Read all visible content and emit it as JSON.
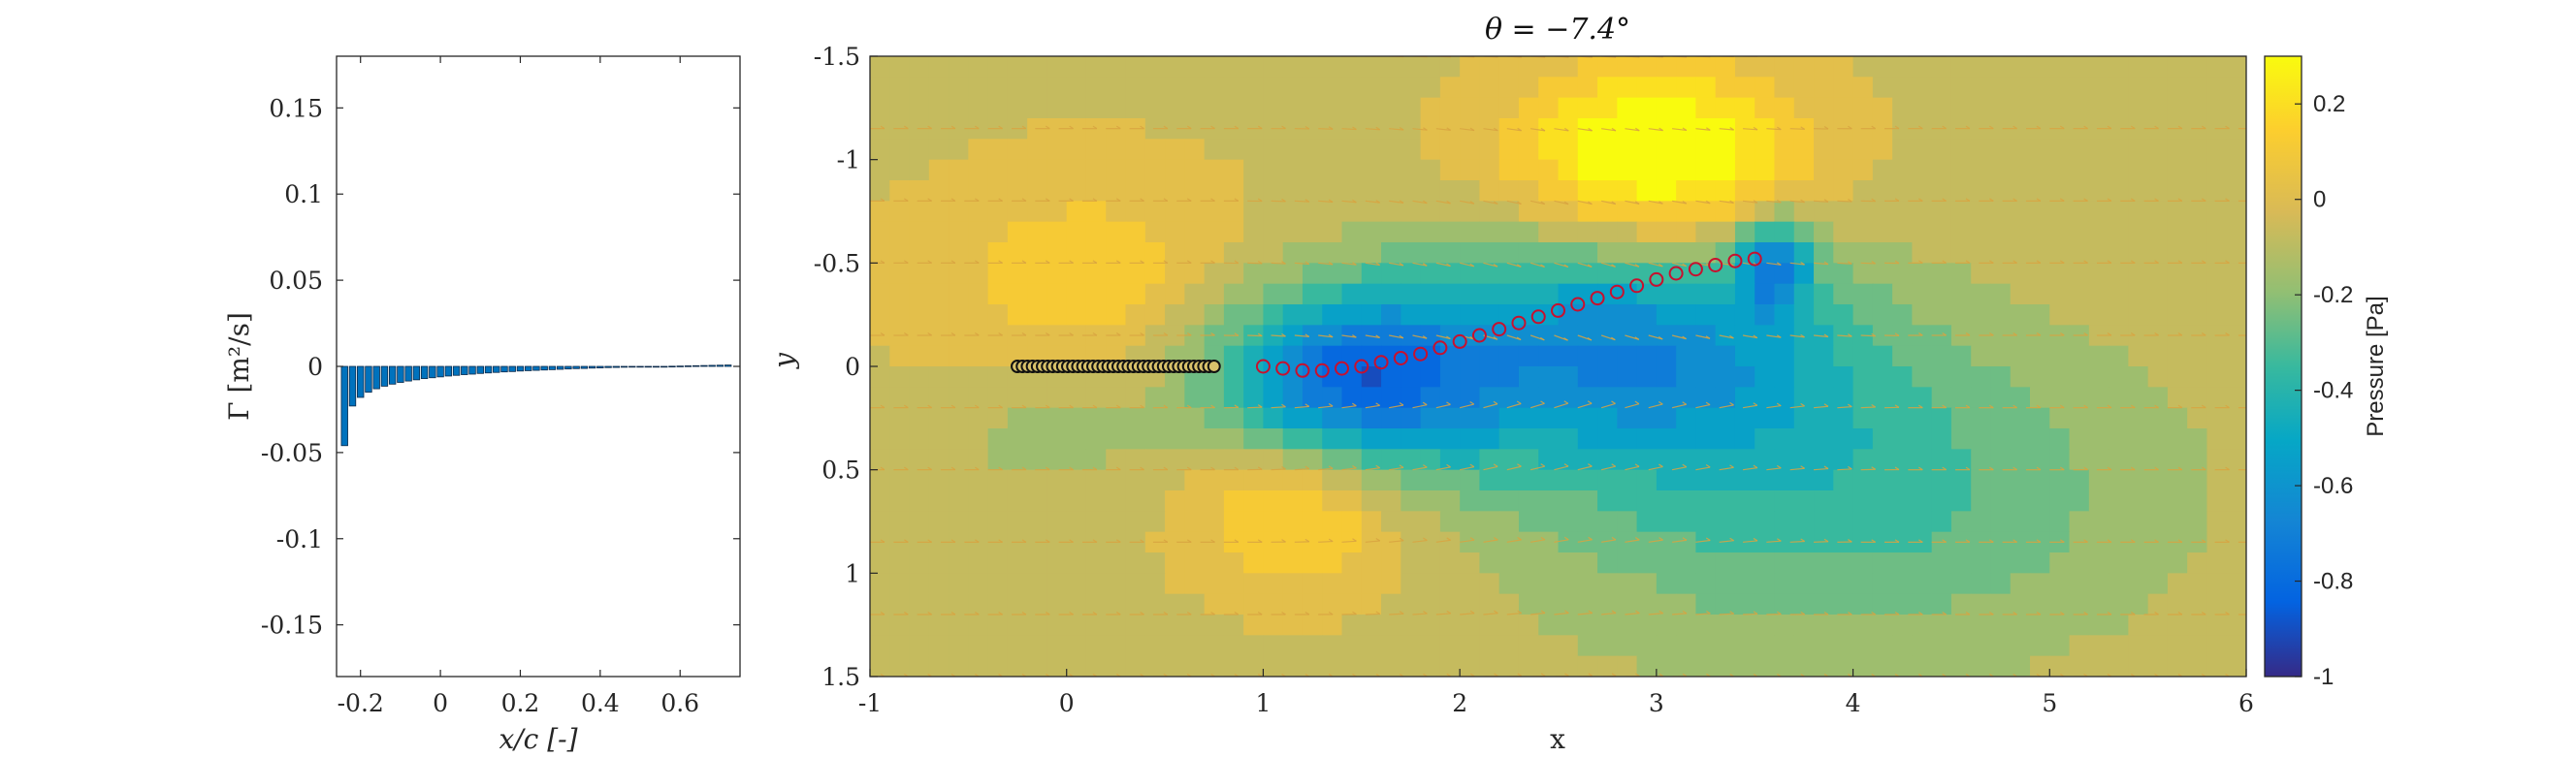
{
  "chart_data": [
    {
      "type": "bar",
      "title": "",
      "xlabel": "x/c [-]",
      "ylabel": "Γ [m²/s]",
      "xlim": [
        -0.26,
        0.75
      ],
      "ylim": [
        -0.18,
        0.18
      ],
      "xticks": [
        "-0.2",
        "0",
        "0.2",
        "0.4",
        "0.6"
      ],
      "xtick_values": [
        -0.2,
        0,
        0.2,
        0.4,
        0.6
      ],
      "yticks": [
        "0.15",
        "0.1",
        "0.05",
        "0",
        "-0.05",
        "-0.1",
        "-0.15"
      ],
      "ytick_values": [
        0.15,
        0.1,
        0.05,
        0,
        -0.05,
        -0.1,
        -0.15
      ],
      "x": [
        -0.24,
        -0.22,
        -0.2,
        -0.18,
        -0.16,
        -0.14,
        -0.12,
        -0.1,
        -0.08,
        -0.06,
        -0.04,
        -0.02,
        0,
        0.02,
        0.04,
        0.06,
        0.08,
        0.1,
        0.12,
        0.14,
        0.16,
        0.18,
        0.2,
        0.22,
        0.24,
        0.26,
        0.28,
        0.3,
        0.32,
        0.34,
        0.36,
        0.38,
        0.4,
        0.42,
        0.44,
        0.46,
        0.48,
        0.5,
        0.52,
        0.54,
        0.56,
        0.58,
        0.6,
        0.62,
        0.64,
        0.66,
        0.68,
        0.7,
        0.72
      ],
      "values": [
        -0.046,
        -0.023,
        -0.018,
        -0.015,
        -0.013,
        -0.0115,
        -0.0103,
        -0.0093,
        -0.0085,
        -0.0078,
        -0.0071,
        -0.0066,
        -0.0061,
        -0.0056,
        -0.0052,
        -0.0048,
        -0.0045,
        -0.0041,
        -0.0038,
        -0.0035,
        -0.0032,
        -0.003,
        -0.0027,
        -0.0025,
        -0.0023,
        -0.0021,
        -0.0019,
        -0.0017,
        -0.0015,
        -0.0013,
        -0.0012,
        -0.001,
        -0.0009,
        -0.0007,
        -0.0006,
        -0.0005,
        -0.0004,
        -0.0003,
        -0.0002,
        -0.0001,
        0,
        0.0001,
        0.0002,
        0.0003,
        0.0004,
        0.0005,
        0.0006,
        0.0007,
        0.0008
      ],
      "bar_color": "#0072BD",
      "grid": false
    },
    {
      "type": "heatmap",
      "title": "θ = −7.4°",
      "xlabel": "x",
      "ylabel": "y",
      "xlim": [
        -1,
        6
      ],
      "ylim": [
        -1.5,
        1.5
      ],
      "y_reversed": true,
      "xticks": [
        "-1",
        "0",
        "1",
        "2",
        "3",
        "4",
        "5",
        "6"
      ],
      "xtick_values": [
        -1,
        0,
        1,
        2,
        3,
        4,
        5,
        6
      ],
      "yticks": [
        "-1.5",
        "-1",
        "-0.5",
        "0",
        "0.5",
        "1",
        "1.5"
      ],
      "ytick_values": [
        -1.5,
        -1,
        -0.5,
        0,
        0.5,
        1,
        1.5
      ],
      "colorbar": {
        "label": "Pressure [Pa]",
        "range": [
          -1,
          0.3
        ],
        "ticks": [
          "0.2",
          "0",
          "-0.2",
          "-0.4",
          "-0.6",
          "-0.8",
          "-1"
        ],
        "tick_values": [
          0.2,
          0,
          -0.2,
          -0.4,
          -0.6,
          -0.8,
          -1
        ],
        "colormap": "parula"
      },
      "pressure_sources": [
        {
          "x": 0.1,
          "y": -0.4,
          "strength": 0.18,
          "sx": 0.85,
          "sy": 0.55
        },
        {
          "x": -0.1,
          "y": 0.3,
          "strength": -0.12,
          "sx": 0.55,
          "sy": 0.35
        },
        {
          "x": 1.4,
          "y": 0.1,
          "strength": -0.75,
          "sx": 0.7,
          "sy": 0.45
        },
        {
          "x": 2.8,
          "y": -0.1,
          "strength": -0.55,
          "sx": 1.1,
          "sy": 0.55
        },
        {
          "x": 3.6,
          "y": -0.5,
          "strength": -0.55,
          "sx": 0.18,
          "sy": 0.22
        },
        {
          "x": 3.0,
          "y": -1.0,
          "strength": 0.45,
          "sx": 0.75,
          "sy": 0.45
        },
        {
          "x": 1.2,
          "y": 0.6,
          "strength": 0.35,
          "sx": 0.55,
          "sy": 0.45
        },
        {
          "x": 3.9,
          "y": 0.6,
          "strength": -0.3,
          "sx": 1.6,
          "sy": 0.8
        }
      ],
      "background_pressure": -0.05,
      "plate": {
        "x_start": -0.25,
        "x_end": 0.75,
        "y": 0,
        "marker_color": "#111111",
        "n_markers": 40
      },
      "wake": {
        "marker_color": "#c8102e",
        "x": [
          1.0,
          1.1,
          1.2,
          1.3,
          1.4,
          1.5,
          1.6,
          1.7,
          1.8,
          1.9,
          2.0,
          2.1,
          2.2,
          2.3,
          2.4,
          2.5,
          2.6,
          2.7,
          2.8,
          2.9,
          3.0,
          3.1,
          3.2,
          3.3,
          3.4,
          3.5
        ],
        "y": [
          0.0,
          0.01,
          0.02,
          0.02,
          0.01,
          0.0,
          -0.02,
          -0.04,
          -0.06,
          -0.09,
          -0.12,
          -0.15,
          -0.18,
          -0.21,
          -0.24,
          -0.27,
          -0.3,
          -0.33,
          -0.36,
          -0.39,
          -0.42,
          -0.45,
          -0.47,
          -0.49,
          -0.51,
          -0.52
        ]
      },
      "quiver": {
        "color": "#d9a441",
        "rows": [
          -1.5,
          -1.15,
          -0.8,
          -0.5,
          -0.15,
          0.2,
          0.5,
          0.85,
          1.2,
          1.5
        ]
      }
    }
  ]
}
